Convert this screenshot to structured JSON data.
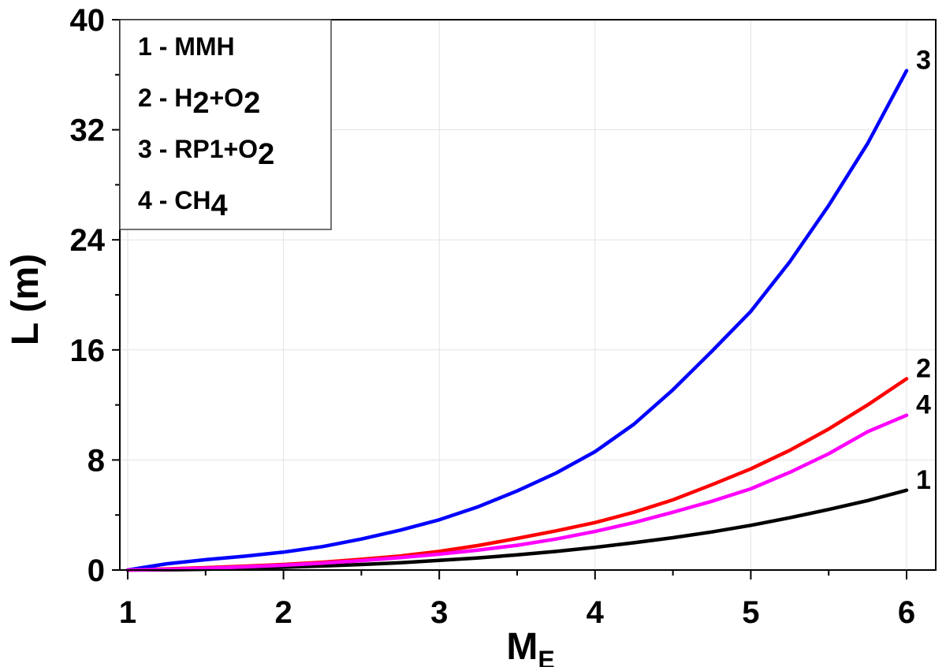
{
  "chart_data": {
    "type": "line",
    "xlabel": "M",
    "xlabel_sub": "E",
    "ylabel": "L (m)",
    "xlim": [
      1,
      6
    ],
    "ylim": [
      0,
      40
    ],
    "xticks": [
      1,
      2,
      3,
      4,
      5,
      6
    ],
    "yticks": [
      0,
      8,
      16,
      24,
      32,
      40
    ],
    "grid": true,
    "legend_position": "top-left",
    "legend": [
      {
        "id": "1",
        "parts": [
          {
            "t": "1 - MMH"
          }
        ]
      },
      {
        "id": "2",
        "parts": [
          {
            "t": "2 - H"
          },
          {
            "t": "2",
            "sub": true
          },
          {
            "t": "+O"
          },
          {
            "t": "2",
            "sub": true
          }
        ]
      },
      {
        "id": "3",
        "parts": [
          {
            "t": "3 - RP1+O"
          },
          {
            "t": "2",
            "sub": true
          }
        ]
      },
      {
        "id": "4",
        "parts": [
          {
            "t": "4 - CH"
          },
          {
            "t": "4",
            "sub": true
          }
        ]
      }
    ],
    "x": [
      1.0,
      1.25,
      1.5,
      1.75,
      2.0,
      2.25,
      2.5,
      2.75,
      3.0,
      3.25,
      3.5,
      3.75,
      4.0,
      4.25,
      4.5,
      4.75,
      5.0,
      5.25,
      5.5,
      5.75,
      6.0
    ],
    "series": [
      {
        "label": "1",
        "color": "#000000",
        "values": [
          0.0,
          0.02,
          0.06,
          0.12,
          0.2,
          0.29,
          0.4,
          0.53,
          0.7,
          0.88,
          1.1,
          1.35,
          1.65,
          1.98,
          2.35,
          2.77,
          3.25,
          3.8,
          4.4,
          5.05,
          5.8
        ]
      },
      {
        "label": "2",
        "color": "#ff0000",
        "values": [
          0.0,
          0.08,
          0.17,
          0.28,
          0.4,
          0.57,
          0.78,
          1.02,
          1.35,
          1.78,
          2.3,
          2.85,
          3.45,
          4.2,
          5.1,
          6.2,
          7.35,
          8.7,
          10.25,
          12.0,
          13.9
        ]
      },
      {
        "label": "3",
        "color": "#0000ff",
        "values": [
          0.0,
          0.45,
          0.75,
          1.0,
          1.3,
          1.7,
          2.25,
          2.9,
          3.65,
          4.6,
          5.75,
          7.05,
          8.6,
          10.6,
          13.1,
          15.9,
          18.8,
          22.4,
          26.5,
          31.0,
          36.3
        ]
      },
      {
        "label": "4",
        "color": "#ff00ff",
        "values": [
          0.0,
          0.05,
          0.13,
          0.23,
          0.35,
          0.5,
          0.68,
          0.9,
          1.15,
          1.45,
          1.8,
          2.25,
          2.8,
          3.45,
          4.2,
          5.0,
          5.9,
          7.1,
          8.45,
          10.05,
          11.25
        ]
      }
    ]
  }
}
